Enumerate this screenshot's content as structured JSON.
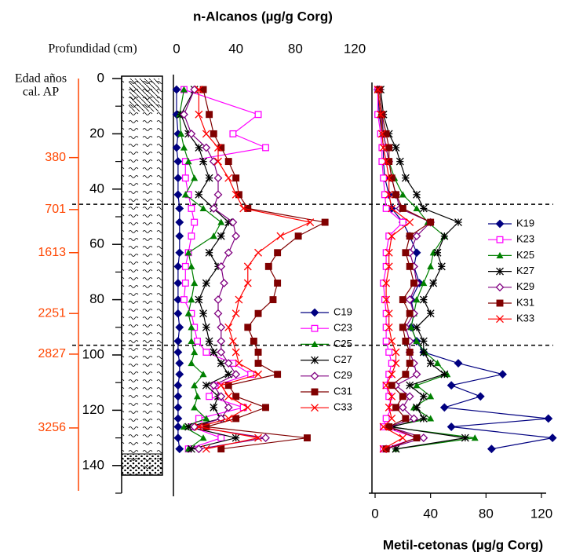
{
  "chart_data": [
    {
      "type": "line",
      "title": "n-Alcanos (µg/g Corg)",
      "ylabel": "Profundidad (cm)",
      "age_label": [
        "Edad años",
        "cal. AP"
      ],
      "age_ticks": [
        {
          "value": 28.6,
          "label": "380"
        },
        {
          "value": 47.4,
          "label": "701"
        },
        {
          "value": 63,
          "label": "1613"
        },
        {
          "value": 85,
          "label": "2251"
        },
        {
          "value": 99.7,
          "label": "2827"
        },
        {
          "value": 126.4,
          "label": "3256"
        }
      ],
      "reference_lines": [
        45.5,
        96.5
      ],
      "ylim": [
        0,
        150
      ],
      "yticks": [
        0,
        20,
        40,
        60,
        80,
        100,
        120,
        140
      ],
      "yminor": [
        10,
        30,
        50,
        70,
        90,
        110,
        130,
        150
      ],
      "xlim": [
        0,
        120
      ],
      "xticks": [
        0,
        40,
        80,
        120
      ],
      "legend": "center right",
      "y": [
        4,
        13,
        20,
        25,
        30,
        36,
        42,
        47,
        52,
        57,
        63,
        68,
        74,
        80,
        85,
        90,
        95,
        99,
        103,
        107,
        111,
        115,
        119,
        123,
        126,
        130,
        134
      ],
      "series": [
        {
          "name": "C19",
          "color": "#000080",
          "marker": "diamond",
          "values": [
            0,
            0,
            1,
            0,
            1,
            1,
            1,
            2,
            2,
            2,
            2,
            1,
            1,
            1,
            1,
            2,
            1,
            1,
            2,
            2,
            1,
            1,
            1,
            1,
            1,
            1,
            2
          ]
        },
        {
          "name": "C23",
          "color": "#ff00ff",
          "marker": "square-open",
          "values": [
            5,
            55,
            38,
            60,
            6,
            6,
            8,
            10,
            12,
            10,
            8,
            6,
            6,
            5,
            10,
            12,
            14,
            20,
            38,
            50,
            26,
            22,
            45,
            15,
            10,
            30,
            8
          ]
        },
        {
          "name": "C25",
          "color": "#008000",
          "marker": "triangle",
          "values": [
            5,
            2,
            3,
            5,
            8,
            12,
            6,
            18,
            30,
            25,
            8,
            10,
            12,
            10,
            8,
            10,
            10,
            12,
            10,
            18,
            12,
            14,
            12,
            20,
            5,
            18,
            8
          ]
        },
        {
          "name": "C27",
          "color": "#000000",
          "marker": "asterisk",
          "values": [
            12,
            3,
            8,
            15,
            18,
            22,
            15,
            25,
            35,
            30,
            22,
            28,
            20,
            15,
            18,
            20,
            22,
            25,
            30,
            35,
            20,
            28,
            25,
            30,
            8,
            40,
            10
          ]
        },
        {
          "name": "C29",
          "color": "#800080",
          "marker": "diamond-open",
          "values": [
            12,
            5,
            10,
            20,
            25,
            28,
            28,
            25,
            38,
            40,
            35,
            30,
            32,
            28,
            28,
            30,
            30,
            30,
            35,
            40,
            25,
            30,
            35,
            30,
            12,
            60,
            15
          ]
        },
        {
          "name": "C31",
          "color": "#800000",
          "marker": "square",
          "values": [
            18,
            22,
            25,
            30,
            35,
            40,
            42,
            48,
            100,
            82,
            68,
            62,
            68,
            65,
            55,
            48,
            52,
            55,
            55,
            68,
            35,
            40,
            60,
            40,
            20,
            88,
            30
          ]
        },
        {
          "name": "C33",
          "color": "#ff0000",
          "marker": "x",
          "values": [
            15,
            15,
            20,
            28,
            28,
            35,
            40,
            45,
            90,
            70,
            55,
            48,
            48,
            42,
            40,
            35,
            38,
            40,
            42,
            55,
            30,
            35,
            48,
            35,
            15,
            55,
            20
          ]
        }
      ]
    },
    {
      "type": "line",
      "title": "Metil-cetonas (µg/g Corg)",
      "ylim": [
        0,
        150
      ],
      "xlim": [
        0,
        120
      ],
      "xticks": [
        0,
        40,
        80,
        120
      ],
      "legend": "upper right",
      "y": [
        4,
        13,
        20,
        25,
        30,
        36,
        42,
        47,
        52,
        57,
        63,
        68,
        74,
        80,
        85,
        90,
        95,
        99,
        103,
        107,
        111,
        115,
        119,
        123,
        126,
        130,
        134
      ],
      "series": [
        {
          "name": "K19",
          "color": "#000080",
          "marker": "diamond",
          "values": [
            2,
            3,
            5,
            6,
            6,
            7,
            10,
            12,
            20,
            25,
            30,
            28,
            32,
            26,
            28,
            26,
            30,
            35,
            60,
            92,
            55,
            76,
            50,
            125,
            55,
            128,
            84
          ]
        },
        {
          "name": "K23",
          "color": "#ff00ff",
          "marker": "square-open",
          "values": [
            2,
            2,
            4,
            5,
            5,
            6,
            7,
            8,
            20,
            10,
            8,
            8,
            6,
            7,
            8,
            8,
            8,
            10,
            12,
            10,
            8,
            10,
            12,
            8,
            6,
            30,
            6
          ]
        },
        {
          "name": "K25",
          "color": "#008000",
          "marker": "triangle",
          "values": [
            2,
            4,
            6,
            8,
            10,
            14,
            20,
            30,
            38,
            50,
            42,
            40,
            35,
            30,
            28,
            26,
            30,
            36,
            45,
            52,
            30,
            40,
            28,
            40,
            10,
            72,
            15
          ]
        },
        {
          "name": "K27",
          "color": "#000000",
          "marker": "asterisk",
          "values": [
            4,
            6,
            10,
            15,
            18,
            22,
            30,
            35,
            60,
            50,
            45,
            48,
            42,
            35,
            40,
            30,
            35,
            35,
            40,
            50,
            25,
            35,
            30,
            35,
            12,
            65,
            15
          ]
        },
        {
          "name": "K29",
          "color": "#800080",
          "marker": "diamond-open",
          "values": [
            3,
            5,
            6,
            8,
            10,
            12,
            15,
            18,
            40,
            30,
            25,
            28,
            30,
            25,
            28,
            22,
            25,
            25,
            28,
            30,
            15,
            25,
            20,
            28,
            10,
            35,
            8
          ]
        },
        {
          "name": "K31",
          "color": "#800000",
          "marker": "square",
          "values": [
            3,
            5,
            8,
            10,
            10,
            12,
            15,
            20,
            40,
            25,
            22,
            25,
            28,
            20,
            25,
            20,
            22,
            25,
            25,
            22,
            12,
            20,
            15,
            22,
            10,
            30,
            8
          ]
        },
        {
          "name": "K33",
          "color": "#ff0000",
          "marker": "x",
          "values": [
            2,
            4,
            5,
            6,
            8,
            10,
            10,
            12,
            25,
            12,
            10,
            10,
            8,
            8,
            10,
            10,
            12,
            15,
            15,
            12,
            8,
            12,
            10,
            12,
            6,
            20,
            6
          ]
        }
      ]
    }
  ]
}
